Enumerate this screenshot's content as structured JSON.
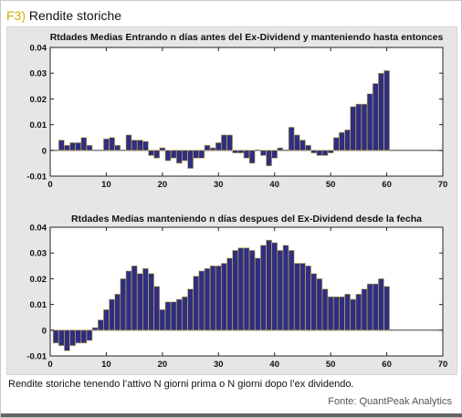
{
  "header": {
    "label": "F3)",
    "title": "Rendite storiche"
  },
  "footer": {
    "caption": "Rendite storiche tenendo l’attivo N giorni prima o N giorni dopo l’ex dividendo.",
    "source": "Fonte: QuantPeak Analytics"
  },
  "colors": {
    "bar_fill": "#2e2e82",
    "bar_stroke": "#c9b04a",
    "panel_bg": "#e6e6e6",
    "label_accent": "#d1b000"
  },
  "chart_data": [
    {
      "type": "bar",
      "title": "Rtdades Medias Entrando n días antes del Ex-Dividend y manteniendo hasta entonces",
      "xlim": [
        0,
        70
      ],
      "ylim": [
        -0.01,
        0.04
      ],
      "xticks": [
        "0",
        "10",
        "20",
        "30",
        "40",
        "50",
        "60",
        "70"
      ],
      "yticks": [
        "-0.01",
        "0",
        "0.01",
        "0.02",
        "0.03",
        "0.04"
      ],
      "x": [
        1,
        2,
        3,
        4,
        5,
        6,
        7,
        8,
        9,
        10,
        11,
        12,
        13,
        14,
        15,
        16,
        17,
        18,
        19,
        20,
        21,
        22,
        23,
        24,
        25,
        26,
        27,
        28,
        29,
        30,
        31,
        32,
        33,
        34,
        35,
        36,
        37,
        38,
        39,
        40,
        41,
        42,
        43,
        44,
        45,
        46,
        47,
        48,
        49,
        50,
        51,
        52,
        53,
        54,
        55,
        56,
        57,
        58,
        59,
        60
      ],
      "values": [
        0,
        0.004,
        0.002,
        0.003,
        0.003,
        0.005,
        0.002,
        0,
        0,
        0.0045,
        0.005,
        0.002,
        0,
        0.006,
        0.004,
        0.004,
        0.0035,
        -0.002,
        -0.003,
        0.001,
        -0.004,
        -0.003,
        -0.005,
        -0.004,
        -0.007,
        -0.003,
        -0.003,
        0.002,
        0.001,
        0.003,
        0.006,
        0.006,
        -0.001,
        -0.001,
        -0.003,
        -0.005,
        0,
        -0.002,
        -0.006,
        -0.003,
        0.001,
        0,
        0.009,
        0.006,
        0.004,
        0.002,
        -0.001,
        -0.002,
        -0.002,
        -0.001,
        0.005,
        0.007,
        0.008,
        0.017,
        0.018,
        0.018,
        0.022,
        0.026,
        0.03,
        0.031
      ]
    },
    {
      "type": "bar",
      "title": "Rtdades Medias manteniendo n días despues del Ex-Dividend desde la fecha",
      "xlim": [
        0,
        70
      ],
      "ylim": [
        -0.01,
        0.04
      ],
      "xticks": [
        "0",
        "10",
        "20",
        "30",
        "40",
        "50",
        "60",
        "70"
      ],
      "yticks": [
        "-0.01",
        "0",
        "0.01",
        "0.02",
        "0.03",
        "0.04"
      ],
      "x": [
        1,
        2,
        3,
        4,
        5,
        6,
        7,
        8,
        9,
        10,
        11,
        12,
        13,
        14,
        15,
        16,
        17,
        18,
        19,
        20,
        21,
        22,
        23,
        24,
        25,
        26,
        27,
        28,
        29,
        30,
        31,
        32,
        33,
        34,
        35,
        36,
        37,
        38,
        39,
        40,
        41,
        42,
        43,
        44,
        45,
        46,
        47,
        48,
        49,
        50,
        51,
        52,
        53,
        54,
        55,
        56,
        57,
        58,
        59,
        60
      ],
      "values": [
        -0.005,
        -0.006,
        -0.008,
        -0.006,
        -0.005,
        -0.005,
        -0.004,
        0.001,
        0.004,
        0.008,
        0.012,
        0.014,
        0.02,
        0.023,
        0.025,
        0.022,
        0.024,
        0.022,
        0.017,
        0.008,
        0.011,
        0.011,
        0.012,
        0.013,
        0.016,
        0.021,
        0.023,
        0.024,
        0.025,
        0.025,
        0.026,
        0.028,
        0.031,
        0.032,
        0.032,
        0.031,
        0.028,
        0.033,
        0.035,
        0.034,
        0.031,
        0.033,
        0.031,
        0.026,
        0.026,
        0.025,
        0.022,
        0.02,
        0.016,
        0.013,
        0.013,
        0.013,
        0.014,
        0.012,
        0.014,
        0.016,
        0.018,
        0.018,
        0.02,
        0.017
      ]
    }
  ]
}
